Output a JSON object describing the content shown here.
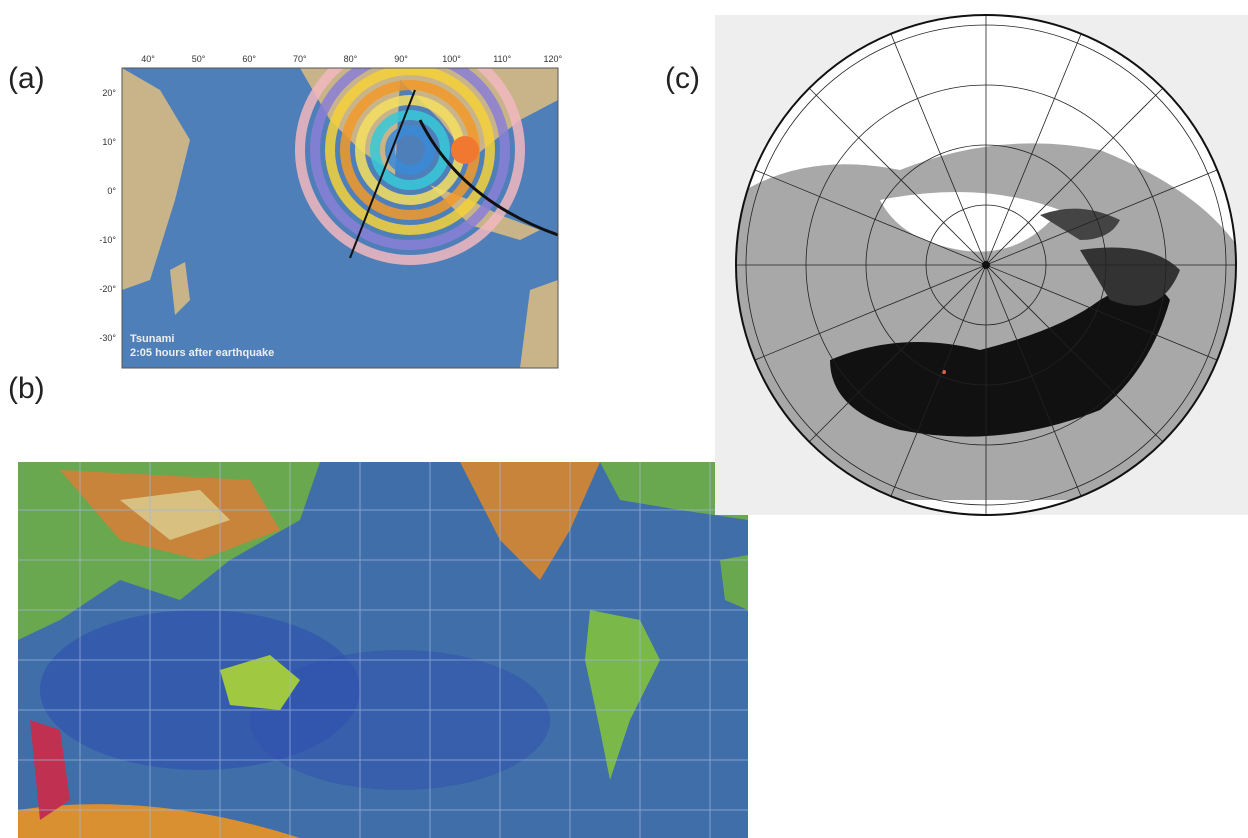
{
  "panels": [
    {
      "label": "(a)",
      "top_ticks": [
        "40°",
        "50°",
        "60°",
        "70°",
        "80°",
        "90°",
        "100°",
        "110°",
        "120°"
      ],
      "left_ticks": [
        "20°",
        "10°",
        "0°",
        "-10°",
        "-20°",
        "-30°"
      ],
      "annotation": [
        "Tsunami",
        "2:05 hours after earthquake"
      ]
    },
    {
      "label": "(b)"
    },
    {
      "label": "(c)"
    }
  ]
}
